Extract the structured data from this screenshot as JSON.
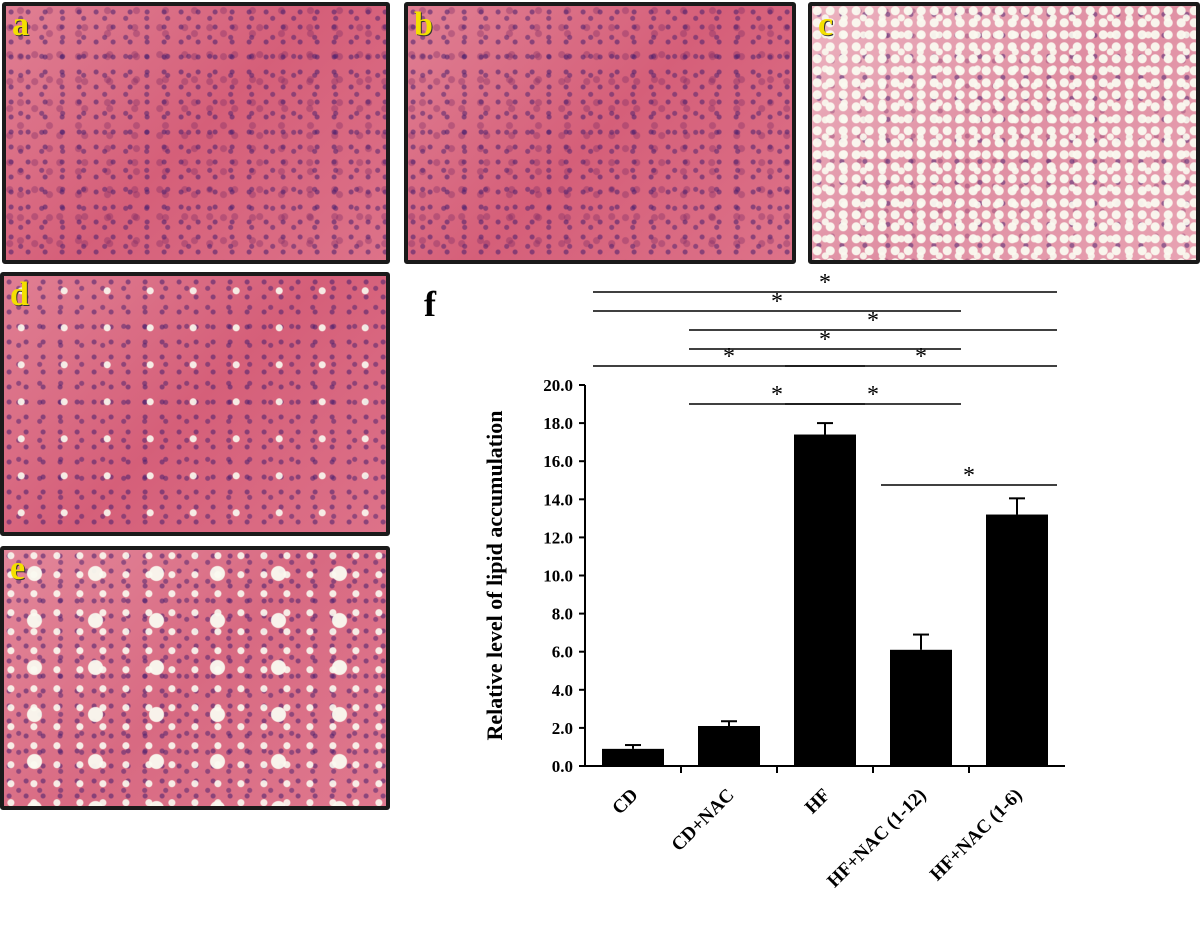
{
  "panels": [
    {
      "letter": "a"
    },
    {
      "letter": "b"
    },
    {
      "letter": "c"
    },
    {
      "letter": "d"
    },
    {
      "letter": "e"
    }
  ],
  "chart_data": {
    "type": "bar",
    "panel_letter": "f",
    "categories": [
      "CD",
      "CD+NAC",
      "HF",
      "HF+NAC (1-12)",
      "HF+NAC (1-6)"
    ],
    "values": [
      0.9,
      2.1,
      17.4,
      6.1,
      13.2
    ],
    "errors": [
      0.2,
      0.25,
      0.6,
      0.8,
      0.85
    ],
    "ylabel": "Relative level of lipid accumulation",
    "ylim": [
      0,
      20
    ],
    "yticks": [
      "0.0",
      "2.0",
      "4.0",
      "6.0",
      "8.0",
      "10.0",
      "12.0",
      "14.0",
      "16.0",
      "18.0",
      "20.0"
    ],
    "bar_color": "#000000",
    "significance": [
      {
        "from": 0,
        "to": 4,
        "label": "*"
      },
      {
        "from": 0,
        "to": 3,
        "label": "*"
      },
      {
        "from": 1,
        "to": 4,
        "label": "*"
      },
      {
        "from": 1,
        "to": 3,
        "label": "*"
      },
      {
        "from": 0,
        "to": 2,
        "label": "*"
      },
      {
        "from": 2,
        "to": 4,
        "label": "*"
      },
      {
        "from": 1,
        "to": 2,
        "label": "*"
      },
      {
        "from": 2,
        "to": 3,
        "label": "*"
      },
      {
        "from": 3,
        "to": 4,
        "label": "*"
      }
    ]
  }
}
